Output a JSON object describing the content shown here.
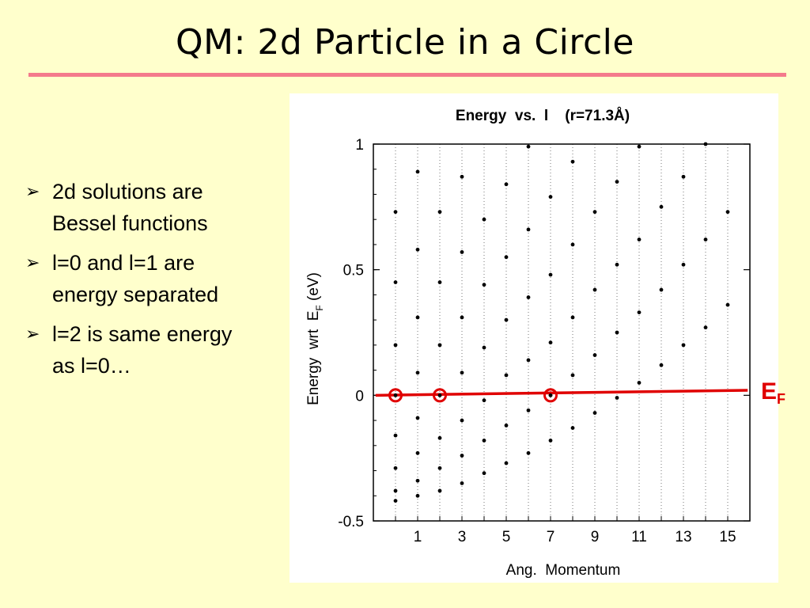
{
  "slide": {
    "title": "QM: 2d Particle in a Circle",
    "bullets": [
      {
        "lines": [
          "2d solutions are",
          "Bessel functions"
        ]
      },
      {
        "lines": [
          "l=0 and l=1 are",
          "energy separated"
        ]
      },
      {
        "lines": [
          "l=2 is same energy",
          "as l=0…"
        ]
      }
    ],
    "fermi_label": {
      "main": "E",
      "sub": "F"
    }
  },
  "colors": {
    "background": "#ffffcc",
    "title_rule": "#f47a8c",
    "fermi": "#e00000"
  },
  "chart_data": {
    "type": "scatter",
    "title": "Energy  vs.  l    (r=71.3Å)",
    "xlabel": "Ang.  Momentum",
    "ylabel": "Energy  wrt  E",
    "ylabel_sub": "F",
    "ylabel_unit": " (eV)",
    "xlim": [
      -1,
      16
    ],
    "ylim": [
      -0.5,
      1
    ],
    "xticks": [
      1,
      3,
      5,
      7,
      9,
      11,
      13,
      15
    ],
    "yticks": [
      {
        "value": 1,
        "label": "1"
      },
      {
        "value": 0.5,
        "label": "0.5"
      },
      {
        "value": 0,
        "label": "0"
      },
      {
        "value": -0.5,
        "label": "-0.5"
      }
    ],
    "grid": "vertical-dotted",
    "series": [
      {
        "x": 0,
        "y": [
          -0.42,
          -0.38,
          -0.29,
          -0.16,
          0.0,
          0.2,
          0.45,
          0.73
        ]
      },
      {
        "x": 1,
        "y": [
          -0.4,
          -0.34,
          -0.23,
          -0.09,
          0.09,
          0.31,
          0.58,
          0.89
        ]
      },
      {
        "x": 2,
        "y": [
          -0.38,
          -0.29,
          -0.17,
          0.0,
          0.2,
          0.45,
          0.73
        ]
      },
      {
        "x": 3,
        "y": [
          -0.35,
          -0.24,
          -0.1,
          0.09,
          0.31,
          0.57,
          0.87
        ]
      },
      {
        "x": 4,
        "y": [
          -0.31,
          -0.18,
          -0.02,
          0.19,
          0.44,
          0.7
        ]
      },
      {
        "x": 5,
        "y": [
          -0.27,
          -0.12,
          0.08,
          0.3,
          0.55,
          0.84
        ]
      },
      {
        "x": 6,
        "y": [
          -0.23,
          -0.06,
          0.14,
          0.39,
          0.66,
          0.99
        ]
      },
      {
        "x": 7,
        "y": [
          -0.18,
          0.0,
          0.21,
          0.48,
          0.79
        ]
      },
      {
        "x": 8,
        "y": [
          -0.13,
          0.08,
          0.31,
          0.6,
          0.93
        ]
      },
      {
        "x": 9,
        "y": [
          -0.07,
          0.16,
          0.42,
          0.73
        ]
      },
      {
        "x": 10,
        "y": [
          -0.01,
          0.25,
          0.52,
          0.85
        ]
      },
      {
        "x": 11,
        "y": [
          0.05,
          0.33,
          0.62,
          0.99
        ]
      },
      {
        "x": 12,
        "y": [
          0.12,
          0.42,
          0.75
        ]
      },
      {
        "x": 13,
        "y": [
          0.2,
          0.52,
          0.87
        ]
      },
      {
        "x": 14,
        "y": [
          0.27,
          0.62,
          1.0
        ]
      },
      {
        "x": 15,
        "y": [
          0.36,
          0.73
        ]
      }
    ],
    "fermi_line": {
      "y_start": 0.0,
      "y_end": 0.02,
      "x_start": -0.9,
      "x_end": 15.9
    },
    "highlighted_points": [
      {
        "x": 0,
        "y": 0.0
      },
      {
        "x": 2,
        "y": 0.0
      },
      {
        "x": 7,
        "y": 0.0
      }
    ]
  }
}
